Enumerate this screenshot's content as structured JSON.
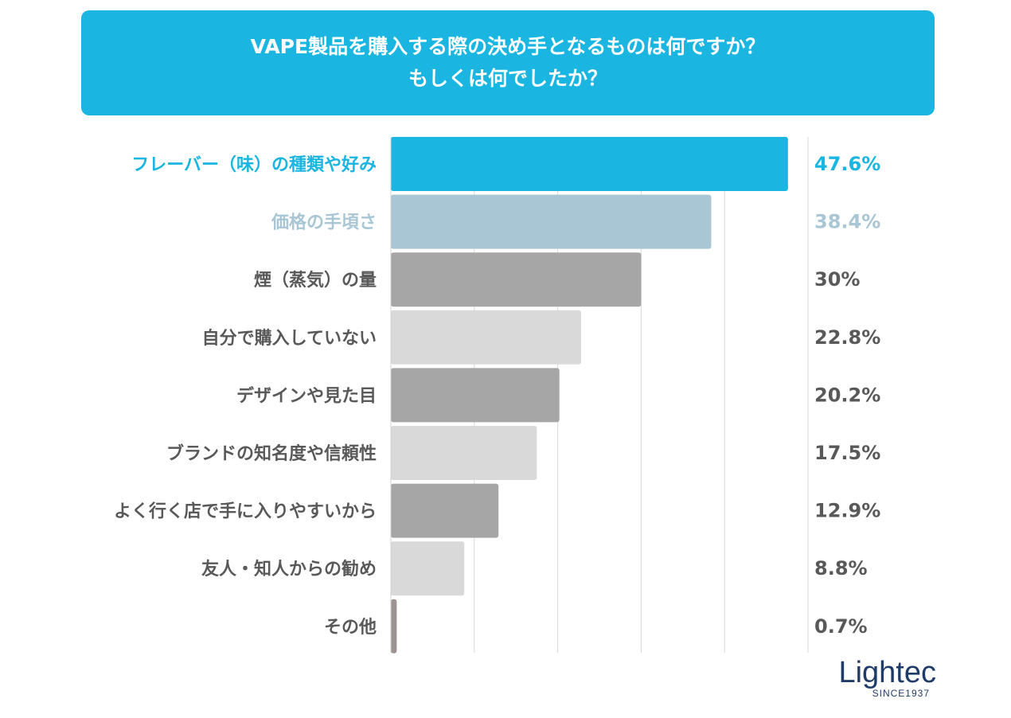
{
  "title": {
    "line1": "VAPE製品を購入する際の決め手となるものは何ですか？",
    "line2": "もしくは何でしたか？"
  },
  "chart_data": {
    "type": "bar",
    "orientation": "horizontal",
    "title": "VAPE製品を購入する際の決め手となるものは何ですか？ もしくは何でしたか？",
    "categories": [
      "フレーバー（味）の種類や好み",
      "価格の手頃さ",
      "煙（蒸気）の量",
      "自分で購入していない",
      "デザインや見た目",
      "ブランドの知名度や信頼性",
      "よく行く店で手に入りやすいから",
      "友人・知人からの勧め",
      "その他"
    ],
    "values": [
      47.6,
      38.4,
      30,
      22.8,
      20.2,
      17.5,
      12.9,
      8.8,
      0.7
    ],
    "value_labels": [
      "47.6%",
      "38.4%",
      "30%",
      "22.8%",
      "20.2%",
      "17.5%",
      "12.9%",
      "8.8%",
      "0.7%"
    ],
    "unit": "%",
    "xlim": [
      0,
      50
    ],
    "grid": true,
    "colors": {
      "bars": [
        "#1ab6e1",
        "#a9c6d5",
        "#a6a6a6",
        "#d9d9d9",
        "#a6a6a6",
        "#d9d9d9",
        "#a6a6a6",
        "#d9d9d9",
        "#9e9391"
      ],
      "labels": [
        "#1ab6e1",
        "#a9c6d5",
        "#595959",
        "#595959",
        "#595959",
        "#595959",
        "#595959",
        "#595959",
        "#595959"
      ]
    }
  },
  "logo": {
    "word_part1": "Lightec",
    "tagline": "SINCE1937"
  }
}
